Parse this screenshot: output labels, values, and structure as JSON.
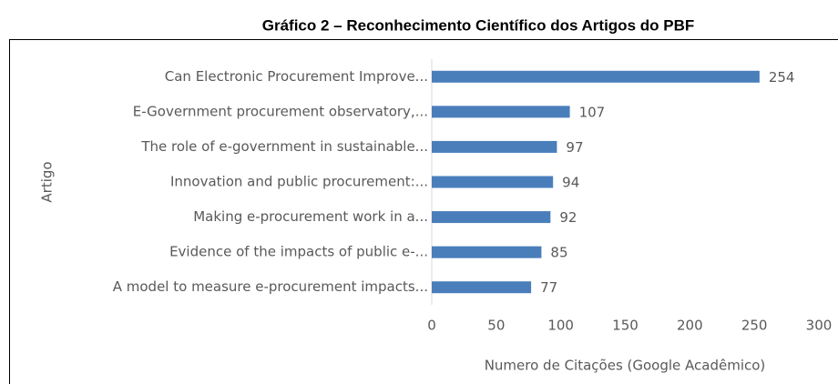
{
  "chart_data": {
    "type": "hbar",
    "title": "Gráfico 2 – Reconhecimento Científico dos Artigos do PBF",
    "x_label": "Numero de Citações (Google Acadêmico)",
    "y_label": "Artigo",
    "categories": [
      "Can Electronic Procurement Improve...",
      "E-Government procurement observatory,...",
      "The role of e-government in sustainable...",
      "Innovation and public procurement:...",
      "Making e-procurement work in a...",
      "Evidence of the impacts of public e-...",
      "A model to measure e-procurement impacts..."
    ],
    "values": [
      254,
      107,
      97,
      94,
      92,
      85,
      77
    ],
    "color": "#4a7ebb",
    "xlim": [
      0,
      300
    ],
    "xticks": [
      0,
      50,
      100,
      150,
      200,
      250,
      300
    ],
    "grid": false
  }
}
